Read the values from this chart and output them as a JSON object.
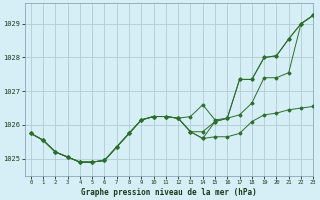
{
  "title": "Graphe pression niveau de la mer (hPa)",
  "bg_color": "#d6eef5",
  "grid_color": "#b0ccd8",
  "line_color": "#2d6e2d",
  "xlim": [
    -0.5,
    23
  ],
  "ylim": [
    1024.5,
    1029.6
  ],
  "yticks": [
    1025,
    1026,
    1027,
    1028,
    1029
  ],
  "xticks": [
    0,
    1,
    2,
    3,
    4,
    5,
    6,
    7,
    8,
    9,
    10,
    11,
    12,
    13,
    14,
    15,
    16,
    17,
    18,
    19,
    20,
    21,
    22,
    23
  ],
  "lines": [
    [
      1025.75,
      1025.55,
      1025.2,
      1025.05,
      1024.9,
      1024.9,
      1024.95,
      1025.35,
      1025.75,
      1026.15,
      1026.25,
      1026.25,
      1026.2,
      1025.8,
      1025.6,
      1025.65,
      1025.65,
      1025.75,
      1026.1,
      1026.3,
      1026.35,
      1026.45,
      1026.5,
      1026.55
    ],
    [
      1025.75,
      1025.55,
      1025.2,
      1025.05,
      1024.9,
      1024.9,
      1024.95,
      1025.35,
      1025.75,
      1026.15,
      1026.25,
      1026.25,
      1026.2,
      1025.8,
      1025.6,
      1026.1,
      1026.2,
      1026.3,
      1026.65,
      1027.4,
      1027.4,
      1027.55,
      1029.0,
      1029.25
    ],
    [
      1025.75,
      1025.55,
      1025.2,
      1025.05,
      1024.9,
      1024.9,
      1024.95,
      1025.35,
      1025.75,
      1026.15,
      1026.25,
      1026.25,
      1026.2,
      1025.8,
      1025.8,
      1026.1,
      1026.2,
      1027.35,
      1027.35,
      1028.0,
      1028.05,
      1028.55,
      1029.0,
      1029.25
    ],
    [
      1025.75,
      1025.55,
      1025.2,
      1025.05,
      1024.9,
      1024.9,
      1024.95,
      1025.35,
      1025.75,
      1026.15,
      1026.25,
      1026.25,
      1026.2,
      1026.25,
      1026.6,
      1026.15,
      1026.2,
      1027.35,
      1027.35,
      1028.0,
      1028.05,
      1028.55,
      1029.0,
      1029.25
    ]
  ]
}
